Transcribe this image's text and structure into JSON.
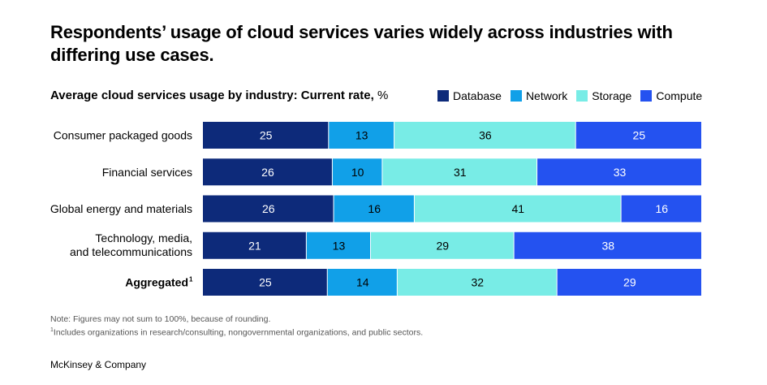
{
  "headline": "Respondents’ usage of cloud services varies widely across industries with differing use cases.",
  "chart_title": "Average cloud services usage by industry: Current rate,",
  "chart_unit": "%",
  "legend": [
    {
      "label": "Database",
      "color": "#0d2a7a"
    },
    {
      "label": "Network",
      "color": "#11a0e8"
    },
    {
      "label": "Storage",
      "color": "#78ece6"
    },
    {
      "label": "Compute",
      "color": "#2452f0"
    }
  ],
  "chart_data": {
    "type": "bar",
    "orientation": "horizontal",
    "stacked": true,
    "categories": [
      "Consumer packaged goods",
      "Financial services",
      "Global energy and materials",
      "Technology, media, and telecommunications",
      "Aggregated"
    ],
    "category_footnotes": [
      "",
      "",
      "",
      "",
      "1"
    ],
    "series": [
      {
        "name": "Database",
        "color": "#0d2a7a",
        "values": [
          25,
          26,
          26,
          21,
          25
        ]
      },
      {
        "name": "Network",
        "color": "#11a0e8",
        "values": [
          13,
          10,
          16,
          13,
          14
        ]
      },
      {
        "name": "Storage",
        "color": "#78ece6",
        "values": [
          36,
          31,
          41,
          29,
          32
        ]
      },
      {
        "name": "Compute",
        "color": "#2452f0",
        "values": [
          25,
          33,
          16,
          38,
          29
        ]
      }
    ],
    "title": "Average cloud services usage by industry: Current rate, %",
    "legend_position": "top-right",
    "grid": false
  },
  "notes": {
    "note": "Note: Figures may not sum to 100%, because of rounding.",
    "footnote_mark": "1",
    "footnote": "Includes organizations in research/consulting, nongovernmental organizations, and public sectors."
  },
  "brand": "McKinsey & Company"
}
